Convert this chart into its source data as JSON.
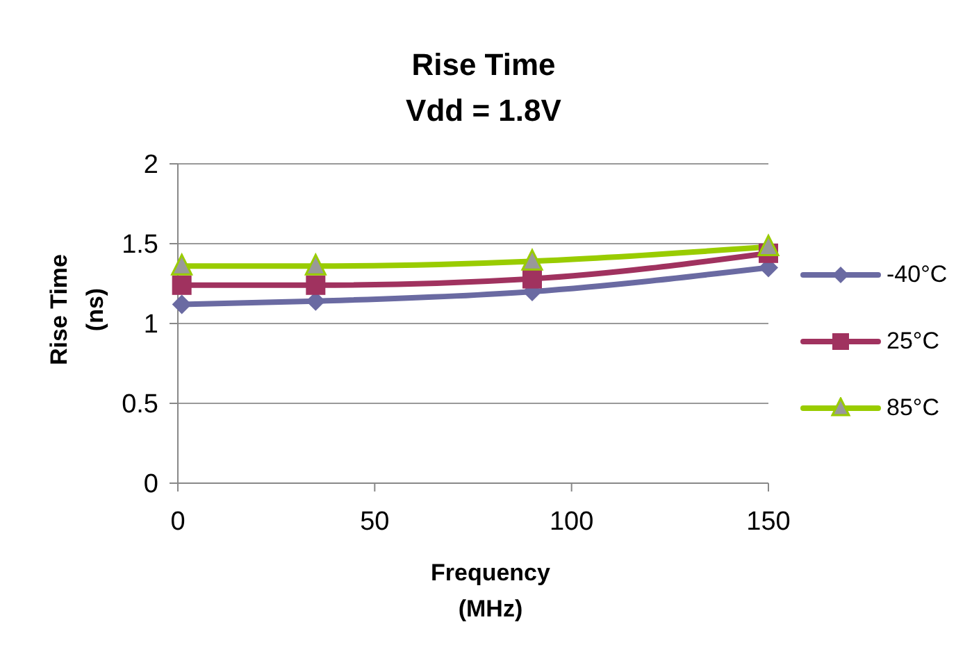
{
  "chart_data": {
    "type": "line",
    "title": "Rise Time",
    "subtitle": "Vdd = 1.8V",
    "xlabel": "Frequency (MHz)",
    "ylabel": "Rise Time (ns)",
    "x": [
      1,
      35,
      90,
      150
    ],
    "series": [
      {
        "name": "-40°C",
        "color": "#6a6aa2",
        "marker": "diamond",
        "values": [
          1.12,
          1.14,
          1.2,
          1.35
        ]
      },
      {
        "name": "25°C",
        "color": "#a0325f",
        "marker": "square",
        "values": [
          1.24,
          1.24,
          1.28,
          1.44
        ]
      },
      {
        "name": "85°C",
        "color": "#99cc00",
        "marker": "triangle",
        "values": [
          1.36,
          1.36,
          1.39,
          1.48
        ]
      }
    ],
    "xlim": [
      0,
      150
    ],
    "xticks": [
      0,
      50,
      100,
      150
    ],
    "ylim": [
      0,
      2
    ],
    "yticks": [
      0,
      0.5,
      1,
      1.5,
      2
    ],
    "grid": "y",
    "legend": "right"
  }
}
